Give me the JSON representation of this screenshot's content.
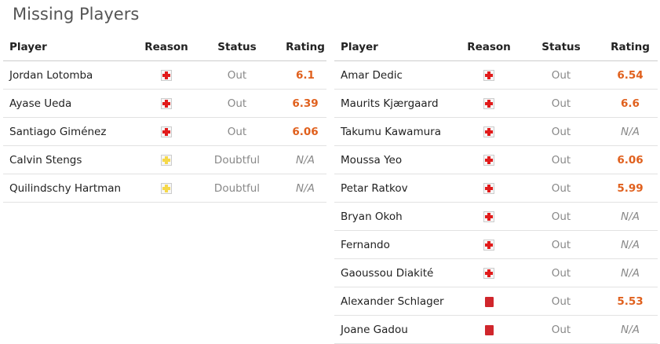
{
  "title": "Missing Players",
  "headers": {
    "player": "Player",
    "reason": "Reason",
    "status": "Status",
    "rating": "Rating"
  },
  "colors": {
    "injury": "#e11b1b",
    "doubtful": "#f5d84a",
    "red_card": "#d0262c",
    "rating": "#e0601d"
  },
  "left": [
    {
      "player": "Jordan Lotomba",
      "reason": "injury-icon",
      "status": "Out",
      "rating": "6.1"
    },
    {
      "player": "Ayase Ueda",
      "reason": "injury-icon",
      "status": "Out",
      "rating": "6.39"
    },
    {
      "player": "Santiago Giménez",
      "reason": "injury-icon",
      "status": "Out",
      "rating": "6.06"
    },
    {
      "player": "Calvin Stengs",
      "reason": "doubtful-injury-icon",
      "status": "Doubtful",
      "rating": "N/A"
    },
    {
      "player": "Quilindschy Hartman",
      "reason": "doubtful-injury-icon",
      "status": "Doubtful",
      "rating": "N/A"
    }
  ],
  "right": [
    {
      "player": "Amar Dedic",
      "reason": "injury-icon",
      "status": "Out",
      "rating": "6.54"
    },
    {
      "player": "Maurits Kjærgaard",
      "reason": "injury-icon",
      "status": "Out",
      "rating": "6.6"
    },
    {
      "player": "Takumu Kawamura",
      "reason": "injury-icon",
      "status": "Out",
      "rating": "N/A"
    },
    {
      "player": "Moussa Yeo",
      "reason": "injury-icon",
      "status": "Out",
      "rating": "6.06"
    },
    {
      "player": "Petar Ratkov",
      "reason": "injury-icon",
      "status": "Out",
      "rating": "5.99"
    },
    {
      "player": "Bryan Okoh",
      "reason": "injury-icon",
      "status": "Out",
      "rating": "N/A"
    },
    {
      "player": "Fernando",
      "reason": "injury-icon",
      "status": "Out",
      "rating": "N/A"
    },
    {
      "player": "Gaoussou Diakité",
      "reason": "injury-icon",
      "status": "Out",
      "rating": "N/A"
    },
    {
      "player": "Alexander Schlager",
      "reason": "red-card-icon",
      "status": "Out",
      "rating": "5.53"
    },
    {
      "player": "Joane Gadou",
      "reason": "red-card-icon",
      "status": "Out",
      "rating": "N/A"
    }
  ]
}
